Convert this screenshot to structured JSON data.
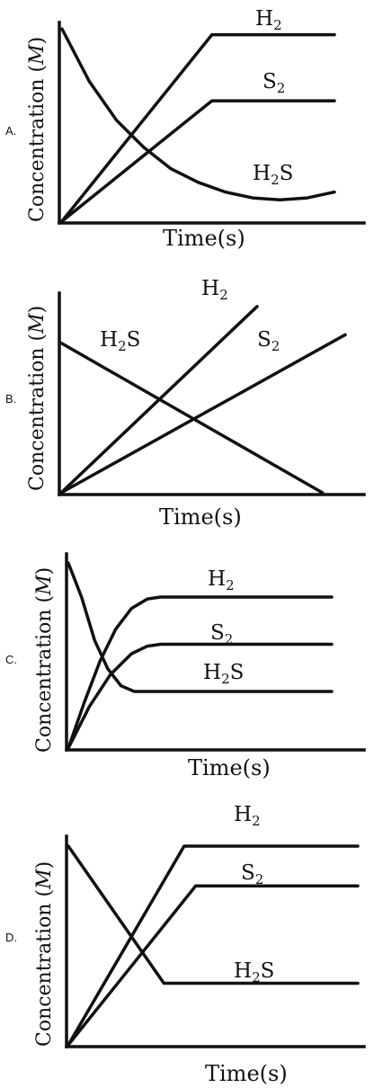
{
  "chart_data": [
    {
      "option": "A.",
      "type": "line",
      "xlabel": "Time(s)",
      "ylabel": "Concentration",
      "ylabel_unit": "M",
      "x_range": [
        0,
        10
      ],
      "y_range": [
        0,
        1
      ],
      "series": [
        {
          "name": "H",
          "sub": "2",
          "post": "",
          "points": [
            [
              0,
              0
            ],
            [
              5.5,
              0.96
            ],
            [
              10,
              0.96
            ]
          ]
        },
        {
          "name": "S",
          "sub": "2",
          "post": "",
          "points": [
            [
              0,
              0
            ],
            [
              5.5,
              0.62
            ],
            [
              10,
              0.62
            ]
          ]
        },
        {
          "name": "H",
          "sub": "2",
          "post": "S",
          "points": [
            [
              0,
              0.99
            ],
            [
              1,
              0.72
            ],
            [
              2,
              0.52
            ],
            [
              3,
              0.38
            ],
            [
              4,
              0.27
            ],
            [
              5,
              0.2
            ],
            [
              6,
              0.15
            ],
            [
              7,
              0.12
            ],
            [
              8,
              0.11
            ],
            [
              9,
              0.12
            ],
            [
              10,
              0.15
            ]
          ]
        }
      ]
    },
    {
      "option": "B.",
      "type": "line",
      "xlabel": "Time(s)",
      "ylabel": "Concentration",
      "ylabel_unit": "M",
      "x_range": [
        0,
        10
      ],
      "y_range": [
        0,
        1
      ],
      "series": [
        {
          "name": "H",
          "sub": "2",
          "post": "S",
          "points": [
            [
              0,
              0.9
            ],
            [
              9.2,
              0
            ]
          ]
        },
        {
          "name": "H",
          "sub": "2",
          "post": "",
          "points": [
            [
              0,
              0
            ],
            [
              6.9,
              1.12
            ]
          ]
        },
        {
          "name": "S",
          "sub": "2",
          "post": "",
          "points": [
            [
              0,
              0
            ],
            [
              10,
              0.95
            ]
          ]
        }
      ]
    },
    {
      "option": "C.",
      "type": "line",
      "xlabel": "Time(s)",
      "ylabel": "Concentration",
      "ylabel_unit": "M",
      "x_range": [
        0,
        10
      ],
      "y_range": [
        0,
        1
      ],
      "series": [
        {
          "name": "H",
          "sub": "2",
          "post": "",
          "points": [
            [
              0,
              0
            ],
            [
              0.6,
              0.24
            ],
            [
              1.2,
              0.46
            ],
            [
              1.8,
              0.63
            ],
            [
              2.4,
              0.74
            ],
            [
              3,
              0.79
            ],
            [
              3.5,
              0.8
            ],
            [
              10,
              0.8
            ]
          ]
        },
        {
          "name": "S",
          "sub": "2",
          "post": "",
          "points": [
            [
              0,
              0
            ],
            [
              0.8,
              0.22
            ],
            [
              1.6,
              0.39
            ],
            [
              2.4,
              0.5
            ],
            [
              3,
              0.54
            ],
            [
              3.5,
              0.55
            ],
            [
              10,
              0.55
            ]
          ]
        },
        {
          "name": "H",
          "sub": "2",
          "post": "S",
          "points": [
            [
              0,
              0.98
            ],
            [
              0.5,
              0.8
            ],
            [
              1,
              0.57
            ],
            [
              1.5,
              0.42
            ],
            [
              2,
              0.33
            ],
            [
              2.5,
              0.3
            ],
            [
              10,
              0.3
            ]
          ]
        }
      ]
    },
    {
      "option": "D.",
      "type": "line",
      "xlabel": "Time(s)",
      "ylabel": "Concentration",
      "ylabel_unit": "M",
      "x_range": [
        0,
        10
      ],
      "y_range": [
        0,
        1
      ],
      "series": [
        {
          "name": "H",
          "sub": "2",
          "post": "",
          "points": [
            [
              0,
              0
            ],
            [
              4,
              1
            ],
            [
              10,
              1
            ]
          ]
        },
        {
          "name": "S",
          "sub": "2",
          "post": "",
          "points": [
            [
              0,
              0
            ],
            [
              4.4,
              0.8
            ],
            [
              10,
              0.8
            ]
          ]
        },
        {
          "name": "H",
          "sub": "2",
          "post": "S",
          "points": [
            [
              0,
              1
            ],
            [
              3.3,
              0.31
            ],
            [
              10,
              0.31
            ]
          ]
        }
      ]
    }
  ]
}
